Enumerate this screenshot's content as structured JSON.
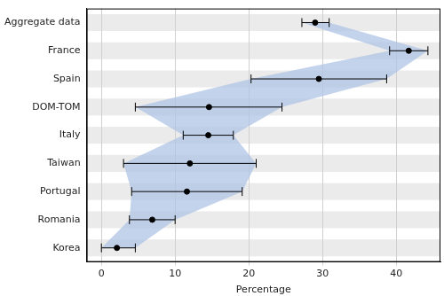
{
  "chart_data": {
    "type": "dot",
    "orientation": "horizontal",
    "x_label": "Percentage",
    "categories": [
      "Aggregate data",
      "France",
      "Spain",
      "DOM-TOM",
      "Italy",
      "Taiwan",
      "Portugal",
      "Romania",
      "Korea"
    ],
    "values": [
      29.0,
      41.7,
      29.5,
      14.6,
      14.5,
      12.0,
      11.6,
      6.9,
      2.1
    ],
    "lower": [
      27.2,
      39.1,
      20.3,
      4.6,
      11.1,
      3.0,
      4.1,
      3.8,
      0.0
    ],
    "upper": [
      30.9,
      44.3,
      38.7,
      24.5,
      17.9,
      21.0,
      19.1,
      10.0,
      4.6
    ],
    "color": "#000000",
    "xlim": [
      -2,
      46
    ],
    "xticks": [
      0,
      10,
      20,
      30,
      40
    ],
    "grid": true
  }
}
